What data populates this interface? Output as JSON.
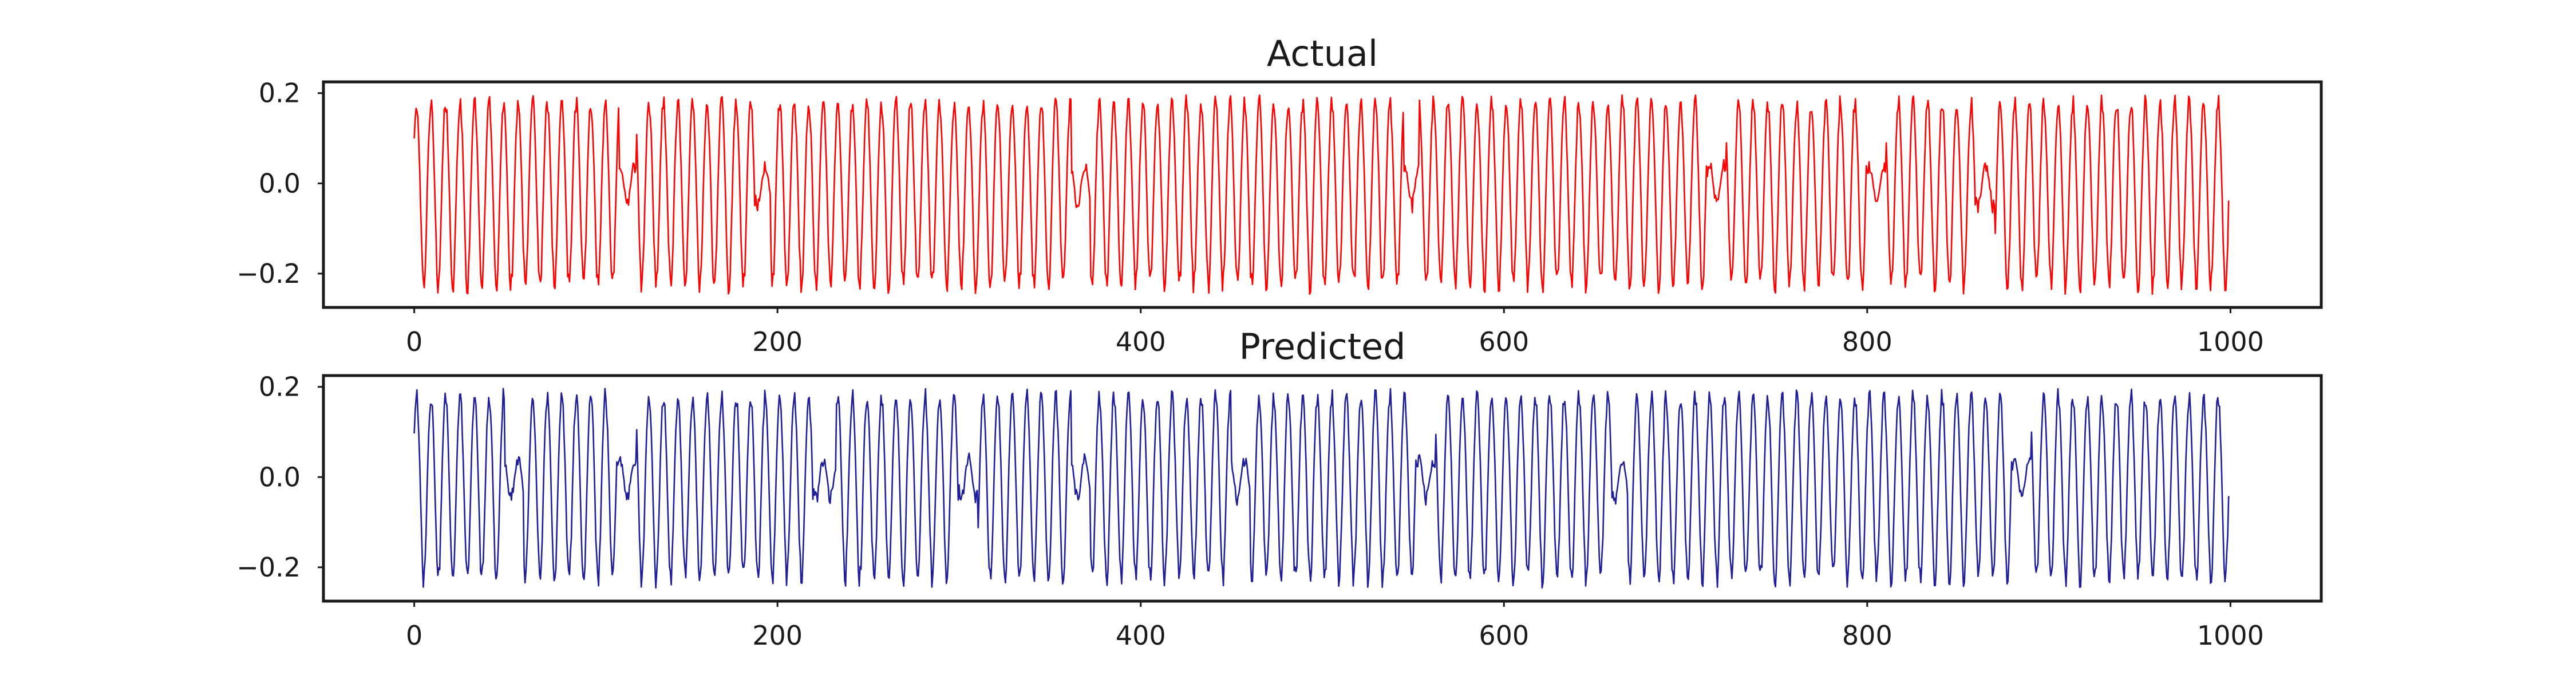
{
  "chart_data": [
    {
      "type": "line",
      "title": "Actual",
      "xlabel": "",
      "ylabel": "",
      "xlim": [
        -50,
        1050
      ],
      "ylim": [
        -0.275,
        0.225
      ],
      "x_ticks": [
        0,
        200,
        400,
        600,
        800,
        1000
      ],
      "y_ticks": [
        -0.2,
        0.0,
        0.2
      ],
      "grid": false,
      "color": "#ff0000",
      "series": [
        {
          "x_range": [
            0,
            999
          ],
          "amplitude_max": 0.2,
          "amplitude_min": -0.25,
          "approx_period": 8,
          "low_amplitude_regions_x": [
            [
              113,
              122
            ],
            [
              188,
              196
            ],
            [
              362,
              372
            ],
            [
              545,
              553
            ],
            [
              712,
              722
            ],
            [
              800,
              810
            ],
            [
              860,
              870
            ]
          ]
        }
      ]
    },
    {
      "type": "line",
      "title": "Predicted",
      "xlabel": "",
      "ylabel": "",
      "xlim": [
        -50,
        1050
      ],
      "ylim": [
        -0.275,
        0.225
      ],
      "x_ticks": [
        0,
        200,
        400,
        600,
        800,
        1000
      ],
      "y_ticks": [
        -0.2,
        0.0,
        0.2
      ],
      "grid": false,
      "color": "#1f1f9a",
      "series": [
        {
          "x_range": [
            0,
            999
          ],
          "amplitude_max": 0.2,
          "amplitude_min": -0.25,
          "approx_period": 8,
          "low_amplitude_regions_x": [
            [
              50,
              60
            ],
            [
              112,
              122
            ],
            [
              220,
              232
            ],
            [
              300,
              310
            ],
            [
              362,
              372
            ],
            [
              450,
              460
            ],
            [
              552,
              562
            ],
            [
              660,
              668
            ],
            [
              880,
              890
            ]
          ]
        }
      ]
    }
  ]
}
